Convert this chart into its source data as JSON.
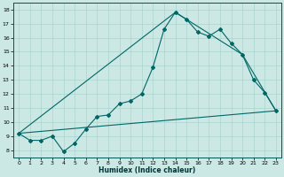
{
  "xlabel": "Humidex (Indice chaleur)",
  "xlim": [
    -0.5,
    23.5
  ],
  "ylim": [
    7.5,
    18.5
  ],
  "xticks": [
    0,
    1,
    2,
    3,
    4,
    5,
    6,
    7,
    8,
    9,
    10,
    11,
    12,
    13,
    14,
    15,
    16,
    17,
    18,
    19,
    20,
    21,
    22,
    23
  ],
  "yticks": [
    8,
    9,
    10,
    11,
    12,
    13,
    14,
    15,
    16,
    17,
    18
  ],
  "bg_color": "#cce8e4",
  "grid_color": "#aad4cf",
  "line_color": "#006666",
  "line1_x": [
    0,
    1,
    2,
    3,
    4,
    5,
    6,
    7,
    8,
    9,
    10,
    11,
    12,
    13,
    14,
    15,
    16,
    17,
    18,
    19,
    20,
    21,
    22,
    23
  ],
  "line1_y": [
    9.2,
    8.7,
    8.7,
    9.0,
    7.9,
    8.5,
    9.5,
    10.4,
    10.5,
    11.3,
    11.5,
    12.0,
    13.9,
    16.6,
    17.8,
    17.3,
    16.4,
    16.1,
    16.6,
    15.6,
    14.8,
    13.0,
    12.1,
    10.8
  ],
  "line2_x": [
    0,
    14,
    20,
    23
  ],
  "line2_y": [
    9.2,
    17.8,
    14.8,
    10.8
  ],
  "line3_x": [
    0,
    23
  ],
  "line3_y": [
    9.2,
    10.8
  ]
}
